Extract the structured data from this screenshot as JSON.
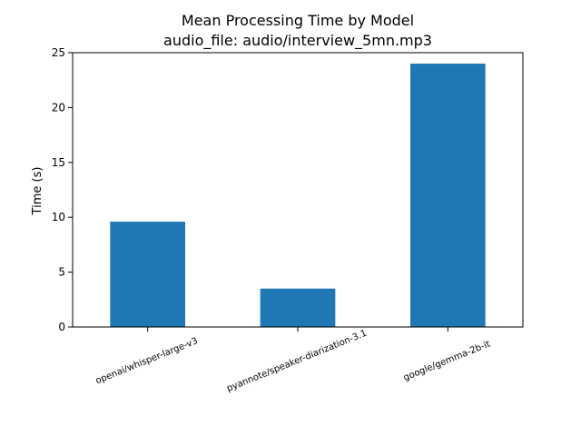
{
  "chart_data": {
    "type": "bar",
    "title": "Mean Processing Time by Model",
    "subtitle": "audio_file: audio/interview_5mn.mp3",
    "xlabel": "",
    "ylabel": "Time (s)",
    "categories": [
      "openai/whisper-large-v3",
      "pyannote/speaker-diarization-3.1",
      "google/gemma-2b-it"
    ],
    "values": [
      9.6,
      3.5,
      24.0
    ],
    "ylim": [
      0,
      25
    ],
    "yticks": [
      0,
      5,
      10,
      15,
      20,
      25
    ],
    "grid": false,
    "bar_color": "#1f77b4",
    "xtick_rotation_deg": 22
  }
}
